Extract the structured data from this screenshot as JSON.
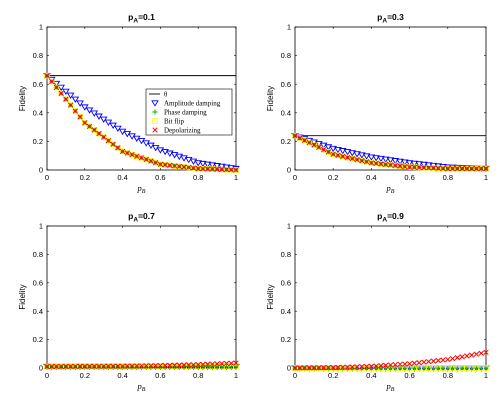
{
  "chart_data": [
    {
      "type": "line",
      "title_main": "p",
      "title_sub": "A",
      "title_tail": "=0.1",
      "xlabel_main": "p",
      "xlabel_sub": "B",
      "ylabel": "Fidelity",
      "xlim": [
        0,
        1
      ],
      "ylim": [
        0,
        1
      ],
      "xticks": [
        "0",
        "0.2",
        "0.4",
        "0.6",
        "0.8",
        "1"
      ],
      "yticks": [
        "0",
        "0.2",
        "0.4",
        "0.6",
        "0.8",
        "1"
      ],
      "legend": true,
      "legend_position": "right",
      "series": [
        {
          "name": "θ",
          "style": "line",
          "color": "#000000",
          "x": [
            0,
            1
          ],
          "values": [
            0.66,
            0.66
          ]
        },
        {
          "name": "Amplitude damping",
          "marker": "triangle-down",
          "color": "#0000ff",
          "x": [
            0,
            0.2,
            0.4,
            0.6,
            0.8,
            1
          ],
          "values": [
            0.66,
            0.44,
            0.27,
            0.14,
            0.05,
            0.01
          ]
        },
        {
          "name": "Phase damping",
          "marker": "plus",
          "color": "#00b000",
          "x": [
            0,
            0.2,
            0.4,
            0.6,
            0.8,
            1
          ],
          "values": [
            0.66,
            0.33,
            0.13,
            0.04,
            0.01,
            0.0
          ]
        },
        {
          "name": "Bit flip",
          "marker": "square",
          "color": "#ffff00",
          "x": [
            0,
            0.2,
            0.4,
            0.6,
            0.8,
            1
          ],
          "values": [
            0.66,
            0.33,
            0.13,
            0.04,
            0.01,
            0.0
          ]
        },
        {
          "name": "Depolarizing",
          "marker": "x",
          "color": "#ff0000",
          "x": [
            0,
            0.2,
            0.4,
            0.6,
            0.8,
            1
          ],
          "values": [
            0.66,
            0.33,
            0.13,
            0.04,
            0.01,
            0.0
          ]
        }
      ]
    },
    {
      "type": "line",
      "title_main": "p",
      "title_sub": "A",
      "title_tail": "=0.3",
      "xlabel_main": "p",
      "xlabel_sub": "B",
      "ylabel": "Fidelity",
      "xlim": [
        0,
        1
      ],
      "ylim": [
        0,
        1
      ],
      "xticks": [
        "0",
        "0.2",
        "0.4",
        "0.6",
        "0.8",
        "1"
      ],
      "yticks": [
        "0",
        "0.2",
        "0.4",
        "0.6",
        "0.8",
        "1"
      ],
      "legend": false,
      "series": [
        {
          "style": "line",
          "color": "#000000",
          "x": [
            0,
            1
          ],
          "values": [
            0.24,
            0.24
          ]
        },
        {
          "marker": "triangle-down",
          "color": "#0000ff",
          "x": [
            0,
            0.2,
            0.4,
            0.6,
            0.8,
            1
          ],
          "values": [
            0.24,
            0.15,
            0.09,
            0.05,
            0.02,
            0.01
          ]
        },
        {
          "marker": "plus",
          "color": "#00b000",
          "x": [
            0,
            0.2,
            0.4,
            0.6,
            0.8,
            1
          ],
          "values": [
            0.24,
            0.11,
            0.05,
            0.02,
            0.01,
            0.01
          ]
        },
        {
          "marker": "square",
          "color": "#ffff00",
          "x": [
            0,
            0.2,
            0.4,
            0.6,
            0.8,
            1
          ],
          "values": [
            0.24,
            0.11,
            0.05,
            0.02,
            0.01,
            0.01
          ]
        },
        {
          "marker": "x",
          "color": "#ff0000",
          "x": [
            0,
            0.2,
            0.4,
            0.6,
            0.8,
            1
          ],
          "values": [
            0.24,
            0.11,
            0.05,
            0.02,
            0.01,
            0.01
          ]
        }
      ]
    },
    {
      "type": "line",
      "title_main": "p",
      "title_sub": "A",
      "title_tail": "=0.7",
      "xlabel_main": "p",
      "xlabel_sub": "B",
      "ylabel": "Fidelity",
      "xlim": [
        0,
        1
      ],
      "ylim": [
        0,
        1
      ],
      "xticks": [
        "0",
        "0.2",
        "0.4",
        "0.6",
        "0.8",
        "1"
      ],
      "yticks": [
        "0",
        "0.2",
        "0.4",
        "0.6",
        "0.8",
        "1"
      ],
      "legend": false,
      "series": [
        {
          "style": "line",
          "color": "#000000",
          "x": [
            0,
            1
          ],
          "values": [
            0.0,
            0.0
          ]
        },
        {
          "marker": "triangle-down",
          "color": "#0000ff",
          "x": [
            0,
            0.2,
            0.4,
            0.6,
            0.8,
            1
          ],
          "values": [
            0.01,
            0.01,
            0.01,
            0.01,
            0.01,
            0.01
          ]
        },
        {
          "marker": "plus",
          "color": "#00b000",
          "x": [
            0,
            0.2,
            0.4,
            0.6,
            0.8,
            1
          ],
          "values": [
            0.01,
            0.01,
            0.01,
            0.01,
            0.01,
            0.01
          ]
        },
        {
          "marker": "square",
          "color": "#ffff00",
          "x": [
            0,
            0.2,
            0.4,
            0.6,
            0.8,
            1
          ],
          "values": [
            0.01,
            0.01,
            0.01,
            0.01,
            0.01,
            0.01
          ]
        },
        {
          "marker": "x",
          "color": "#ff0000",
          "x": [
            0,
            0.2,
            0.4,
            0.6,
            0.8,
            1
          ],
          "values": [
            0.01,
            0.012,
            0.013,
            0.017,
            0.024,
            0.035
          ]
        }
      ]
    },
    {
      "type": "line",
      "title_main": "p",
      "title_sub": "A",
      "title_tail": "=0.9",
      "xlabel_main": "p",
      "xlabel_sub": "B",
      "ylabel": "Fidelity",
      "xlim": [
        0,
        1
      ],
      "ylim": [
        0,
        1
      ],
      "xticks": [
        "0",
        "0.2",
        "0.4",
        "0.6",
        "0.8",
        "1"
      ],
      "yticks": [
        "0",
        "0.2",
        "0.4",
        "0.6",
        "0.8",
        "1"
      ],
      "legend": false,
      "series": [
        {
          "style": "line",
          "color": "#000000",
          "x": [
            0,
            1
          ],
          "values": [
            0.0,
            0.0
          ]
        },
        {
          "marker": "triangle-down",
          "color": "#0000ff",
          "x": [
            0,
            0.2,
            0.4,
            0.6,
            0.8,
            1
          ],
          "values": [
            0.0,
            0.0,
            0.0,
            0.0,
            0.0,
            0.0
          ]
        },
        {
          "marker": "plus",
          "color": "#00b000",
          "x": [
            0,
            0.2,
            0.4,
            0.6,
            0.8,
            1
          ],
          "values": [
            0.0,
            0.0,
            0.0,
            0.0,
            0.0,
            0.0
          ]
        },
        {
          "marker": "square",
          "color": "#ffff00",
          "x": [
            0,
            0.2,
            0.4,
            0.6,
            0.8,
            1
          ],
          "values": [
            0.0,
            0.0,
            0.0,
            0.0,
            0.0,
            0.0
          ]
        },
        {
          "marker": "x",
          "color": "#ff0000",
          "x": [
            0,
            0.2,
            0.4,
            0.6,
            0.8,
            1
          ],
          "values": [
            0.0,
            0.003,
            0.012,
            0.03,
            0.06,
            0.11
          ]
        }
      ]
    }
  ]
}
